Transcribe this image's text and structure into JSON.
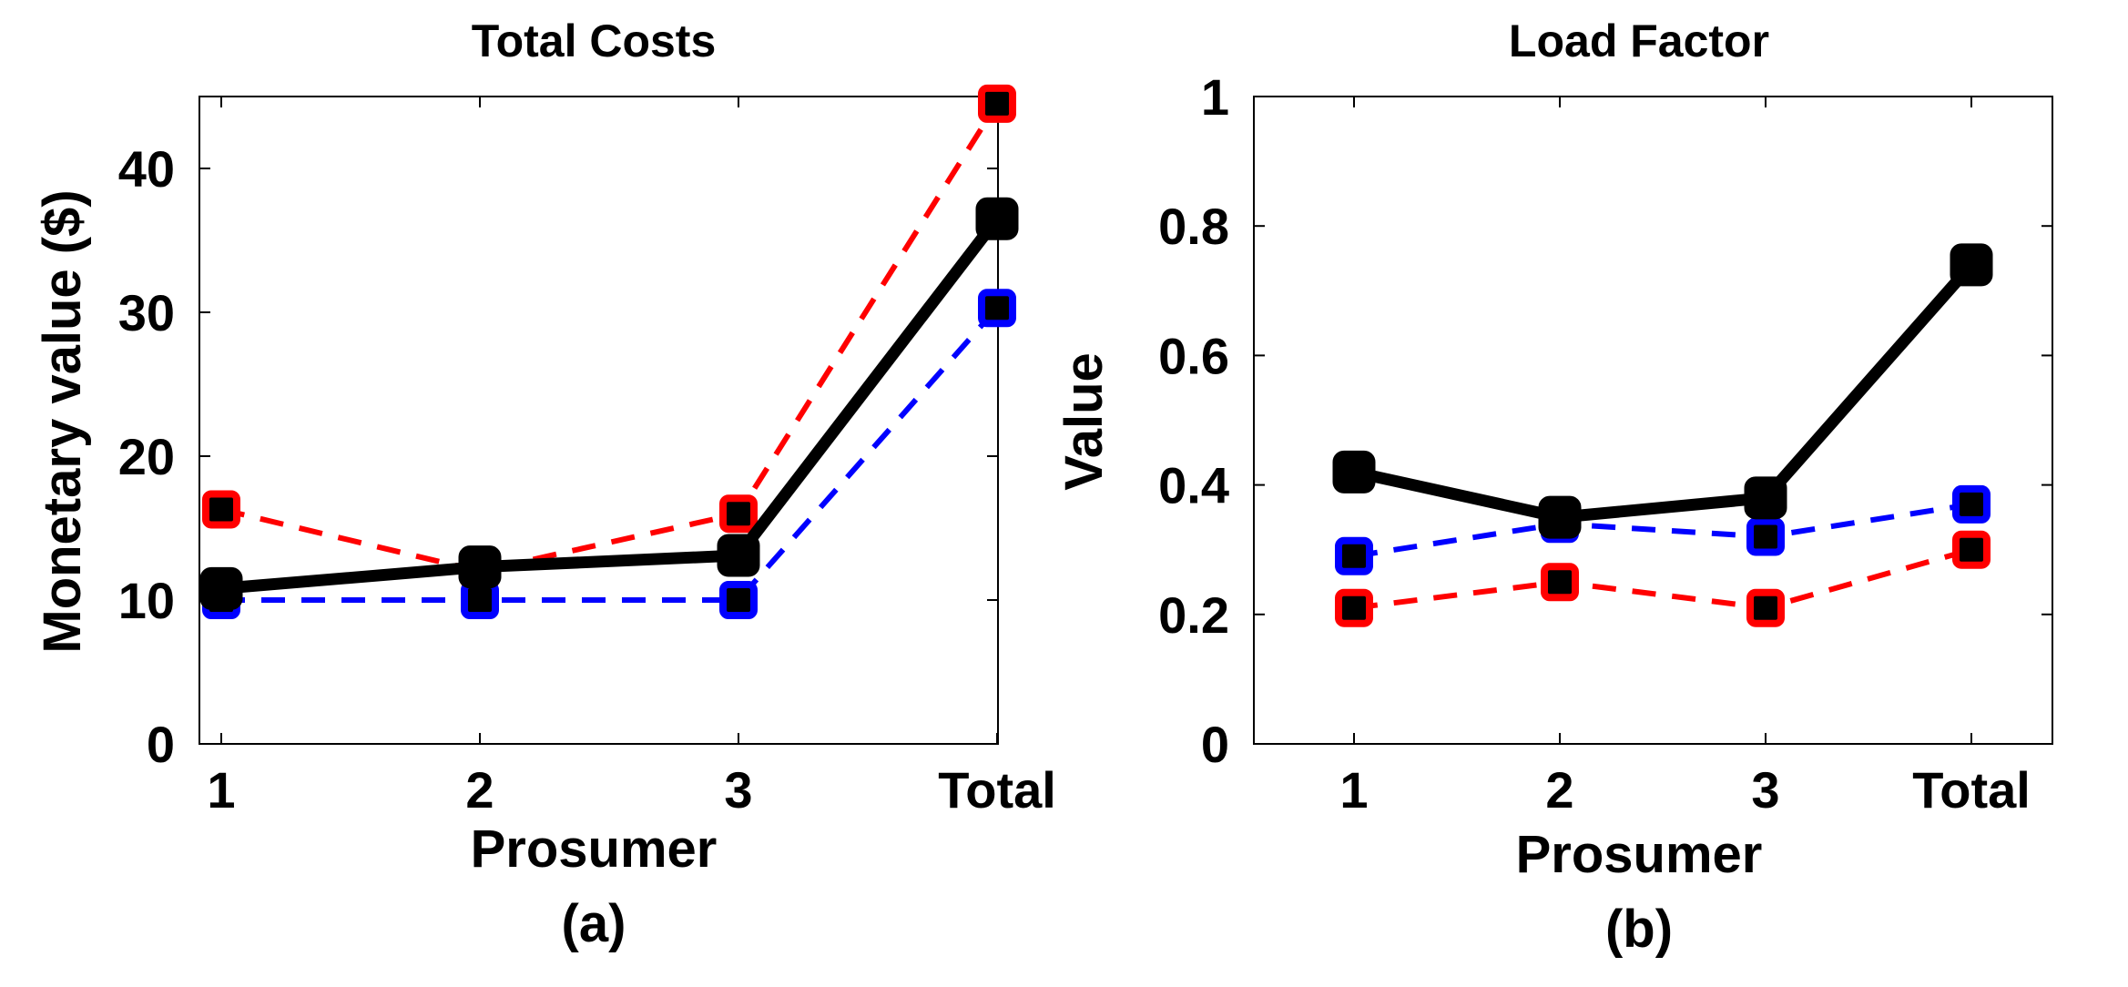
{
  "chart_data": [
    {
      "type": "line",
      "panel_label": "(a)",
      "title": "Total Costs",
      "xlabel": "Prosumer",
      "ylabel": "Monetary value ($)",
      "categories": [
        "1",
        "2",
        "3",
        "Total"
      ],
      "ylim": [
        0,
        45
      ],
      "yticks": [
        0,
        10,
        20,
        30,
        40
      ],
      "ytick_labels": [
        "0",
        "10",
        "20",
        "30",
        "40"
      ],
      "series": [
        {
          "name": "red",
          "color": "#ff0000",
          "style": "dashed",
          "values": [
            16.3,
            12.0,
            16.0,
            44.5
          ]
        },
        {
          "name": "blue",
          "color": "#0000ff",
          "style": "dashed",
          "values": [
            10.0,
            10.0,
            10.0,
            30.3
          ]
        },
        {
          "name": "black",
          "color": "#000000",
          "style": "solid",
          "values": [
            10.8,
            12.3,
            13.1,
            36.5
          ]
        }
      ]
    },
    {
      "type": "line",
      "panel_label": "(b)",
      "title": "Load Factor",
      "xlabel": "Prosumer",
      "ylabel": "Value",
      "categories": [
        "1",
        "2",
        "3",
        "Total"
      ],
      "ylim": [
        0,
        1
      ],
      "yticks": [
        0,
        0.2,
        0.4,
        0.6,
        0.8,
        1
      ],
      "ytick_labels": [
        "0",
        "0.2",
        "0.4",
        "0.6",
        "0.8",
        "1"
      ],
      "series": [
        {
          "name": "red",
          "color": "#ff0000",
          "style": "dashed",
          "values": [
            0.21,
            0.25,
            0.21,
            0.3
          ]
        },
        {
          "name": "blue",
          "color": "#0000ff",
          "style": "dashed",
          "values": [
            0.29,
            0.34,
            0.32,
            0.37
          ]
        },
        {
          "name": "black",
          "color": "#000000",
          "style": "solid",
          "values": [
            0.42,
            0.35,
            0.38,
            0.74
          ]
        }
      ]
    }
  ]
}
